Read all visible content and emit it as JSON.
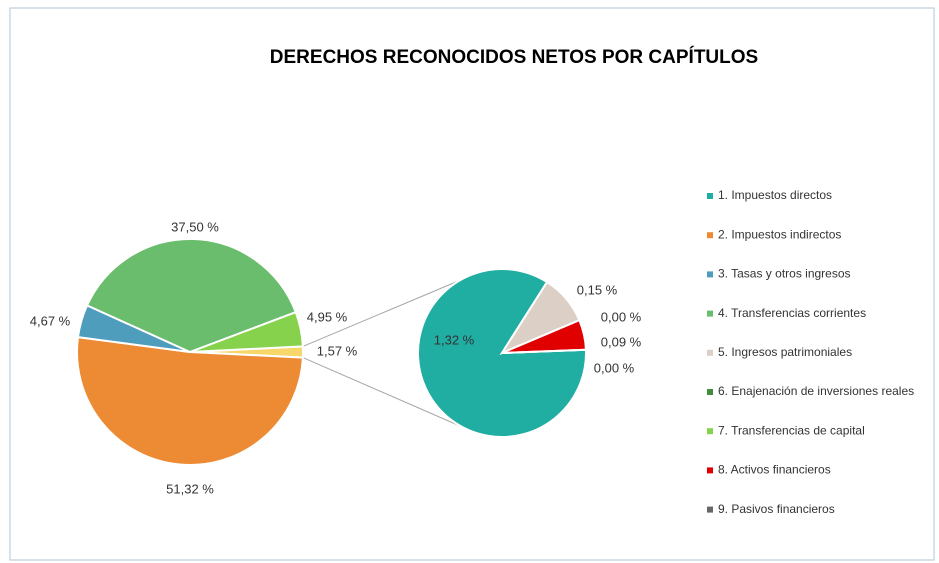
{
  "chart_data": {
    "type": "pie-of-pie",
    "title": "DERECHOS RECONOCIDOS NETOS POR CAPÍTULOS",
    "categories": [
      "1. Impuestos directos",
      "2. Impuestos indirectos",
      "3. Tasas y otros ingresos",
      "4. Transferencias corrientes",
      "5. Ingresos patrimoniales",
      "6. Enajenación de inversiones reales",
      "7. Transferencias de capital",
      "8. Activos financieros",
      "9. Pasivos financieros"
    ],
    "values": [
      1.32,
      51.32,
      4.67,
      37.5,
      0.15,
      0.0,
      4.95,
      0.09,
      0.0
    ],
    "value_labels": [
      "1,32 %",
      "51,32 %",
      "4,67 %",
      "37,50 %",
      "0,15 %",
      "0,00 %",
      "4,95 %",
      "0,09 %",
      "0,00 %"
    ],
    "colors": [
      "#20ada2",
      "#ed8b35",
      "#4f9dbd",
      "#69bd6c",
      "#dccfc5",
      "#3f8c3f",
      "#86d24c",
      "#e00000",
      "#666666"
    ],
    "secondary": [
      true,
      false,
      false,
      false,
      true,
      true,
      false,
      true,
      true
    ],
    "other_value": 1.57,
    "other_label": "1,57 %",
    "other_color": "#f8d76a",
    "legend": "right"
  }
}
